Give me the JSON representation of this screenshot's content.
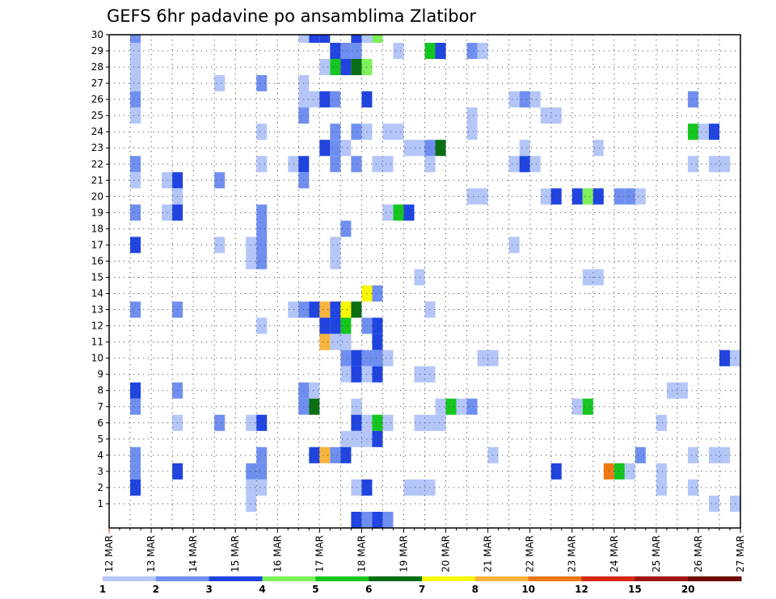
{
  "chart_data": {
    "type": "heatmap",
    "title": "GEFS 6hr padavine po ansamblima Zlatibor",
    "xlabel": "",
    "ylabel": "",
    "x_tick_labels": [
      "12 MAR",
      "13 MAR",
      "14 MAR",
      "15 MAR",
      "16 MAR",
      "17 MAR",
      "18 MAR",
      "19 MAR",
      "20 MAR",
      "21 MAR",
      "22 MAR",
      "23 MAR",
      "24 MAR",
      "25 MAR",
      "26 MAR",
      "27 MAR"
    ],
    "x_step_hours": 6,
    "x_steps": 60,
    "y_tick_labels": [
      "1",
      "2",
      "3",
      "4",
      "5",
      "6",
      "7",
      "8",
      "9",
      "10",
      "11",
      "12",
      "13",
      "14",
      "15",
      "16",
      "17",
      "18",
      "19",
      "20",
      "21",
      "22",
      "23",
      "24",
      "25",
      "26",
      "27",
      "28",
      "29",
      "30"
    ],
    "ylim": [
      0,
      30
    ],
    "grid": true,
    "colorbar": {
      "labels": [
        "1",
        "2",
        "3",
        "4",
        "5",
        "6",
        "7",
        "8",
        "10",
        "12",
        "15",
        "20"
      ],
      "colors": [
        "#b4c6f8",
        "#6f8ff0",
        "#1f44e0",
        "#7ef05a",
        "#14c61e",
        "#0a6e14",
        "#f8f800",
        "#f8b43c",
        "#f07814",
        "#d22814",
        "#a01414",
        "#6e0a0a"
      ]
    },
    "cell_series_format": [
      "member",
      "step",
      "color_index"
    ],
    "cells": [
      [
        30,
        2,
        1
      ],
      [
        30,
        18,
        0
      ],
      [
        30,
        19,
        2
      ],
      [
        30,
        20,
        2
      ],
      [
        30,
        23,
        2
      ],
      [
        30,
        24,
        0
      ],
      [
        30,
        25,
        3
      ],
      [
        29,
        2,
        0
      ],
      [
        29,
        21,
        2
      ],
      [
        29,
        22,
        1
      ],
      [
        29,
        23,
        1
      ],
      [
        29,
        27,
        0
      ],
      [
        29,
        30,
        4
      ],
      [
        29,
        31,
        2
      ],
      [
        29,
        34,
        1
      ],
      [
        29,
        35,
        0
      ],
      [
        28,
        2,
        0
      ],
      [
        28,
        20,
        0
      ],
      [
        28,
        21,
        4
      ],
      [
        28,
        22,
        2
      ],
      [
        28,
        23,
        5
      ],
      [
        28,
        24,
        3
      ],
      [
        27,
        2,
        0
      ],
      [
        27,
        10,
        0
      ],
      [
        27,
        14,
        1
      ],
      [
        27,
        18,
        0
      ],
      [
        26,
        2,
        1
      ],
      [
        26,
        18,
        0
      ],
      [
        26,
        19,
        0
      ],
      [
        26,
        20,
        2
      ],
      [
        26,
        21,
        1
      ],
      [
        26,
        24,
        2
      ],
      [
        26,
        38,
        0
      ],
      [
        26,
        39,
        1
      ],
      [
        26,
        40,
        0
      ],
      [
        26,
        55,
        1
      ],
      [
        25,
        2,
        0
      ],
      [
        25,
        18,
        1
      ],
      [
        25,
        34,
        0
      ],
      [
        25,
        41,
        0
      ],
      [
        25,
        42,
        0
      ],
      [
        24,
        14,
        0
      ],
      [
        24,
        21,
        1
      ],
      [
        24,
        23,
        1
      ],
      [
        24,
        24,
        0
      ],
      [
        24,
        26,
        0
      ],
      [
        24,
        27,
        0
      ],
      [
        24,
        34,
        0
      ],
      [
        24,
        55,
        4
      ],
      [
        24,
        56,
        0
      ],
      [
        24,
        57,
        2
      ],
      [
        23,
        20,
        2
      ],
      [
        23,
        21,
        1
      ],
      [
        23,
        22,
        0
      ],
      [
        23,
        28,
        0
      ],
      [
        23,
        29,
        0
      ],
      [
        23,
        30,
        1
      ],
      [
        23,
        31,
        5
      ],
      [
        23,
        39,
        0
      ],
      [
        23,
        46,
        0
      ],
      [
        22,
        2,
        1
      ],
      [
        22,
        14,
        0
      ],
      [
        22,
        17,
        0
      ],
      [
        22,
        18,
        2
      ],
      [
        22,
        21,
        1
      ],
      [
        22,
        23,
        1
      ],
      [
        22,
        25,
        0
      ],
      [
        22,
        26,
        0
      ],
      [
        22,
        30,
        0
      ],
      [
        22,
        38,
        0
      ],
      [
        22,
        39,
        2
      ],
      [
        22,
        40,
        0
      ],
      [
        22,
        55,
        0
      ],
      [
        22,
        57,
        0
      ],
      [
        22,
        58,
        0
      ],
      [
        21,
        2,
        0
      ],
      [
        21,
        5,
        0
      ],
      [
        21,
        6,
        2
      ],
      [
        21,
        10,
        1
      ],
      [
        21,
        18,
        1
      ],
      [
        20,
        6,
        0
      ],
      [
        20,
        34,
        0
      ],
      [
        20,
        35,
        0
      ],
      [
        20,
        41,
        0
      ],
      [
        20,
        42,
        2
      ],
      [
        20,
        44,
        2
      ],
      [
        20,
        45,
        3
      ],
      [
        20,
        46,
        2
      ],
      [
        20,
        48,
        1
      ],
      [
        20,
        49,
        1
      ],
      [
        20,
        50,
        0
      ],
      [
        19,
        2,
        1
      ],
      [
        19,
        5,
        0
      ],
      [
        19,
        6,
        2
      ],
      [
        19,
        14,
        1
      ],
      [
        19,
        26,
        0
      ],
      [
        19,
        27,
        4
      ],
      [
        19,
        28,
        2
      ],
      [
        18,
        14,
        1
      ],
      [
        18,
        22,
        1
      ],
      [
        17,
        2,
        2
      ],
      [
        17,
        10,
        0
      ],
      [
        17,
        13,
        0
      ],
      [
        17,
        14,
        1
      ],
      [
        17,
        21,
        0
      ],
      [
        17,
        38,
        0
      ],
      [
        16,
        13,
        0
      ],
      [
        16,
        14,
        1
      ],
      [
        16,
        21,
        0
      ],
      [
        15,
        29,
        0
      ],
      [
        15,
        45,
        0
      ],
      [
        15,
        46,
        0
      ],
      [
        14,
        24,
        6
      ],
      [
        14,
        25,
        1
      ],
      [
        13,
        2,
        1
      ],
      [
        13,
        6,
        1
      ],
      [
        13,
        17,
        0
      ],
      [
        13,
        18,
        1
      ],
      [
        13,
        19,
        2
      ],
      [
        13,
        20,
        7
      ],
      [
        13,
        21,
        2
      ],
      [
        13,
        22,
        6
      ],
      [
        13,
        23,
        5
      ],
      [
        13,
        30,
        0
      ],
      [
        12,
        14,
        0
      ],
      [
        12,
        20,
        2
      ],
      [
        12,
        21,
        2
      ],
      [
        12,
        22,
        4
      ],
      [
        12,
        24,
        1
      ],
      [
        12,
        25,
        2
      ],
      [
        11,
        20,
        7
      ],
      [
        11,
        21,
        0
      ],
      [
        11,
        22,
        0
      ],
      [
        11,
        25,
        2
      ],
      [
        10,
        22,
        1
      ],
      [
        10,
        23,
        2
      ],
      [
        10,
        24,
        1
      ],
      [
        10,
        25,
        1
      ],
      [
        10,
        26,
        0
      ],
      [
        10,
        35,
        0
      ],
      [
        10,
        36,
        0
      ],
      [
        10,
        58,
        2
      ],
      [
        10,
        59,
        0
      ],
      [
        9,
        22,
        0
      ],
      [
        9,
        23,
        2
      ],
      [
        9,
        24,
        0
      ],
      [
        9,
        25,
        2
      ],
      [
        9,
        29,
        0
      ],
      [
        9,
        30,
        0
      ],
      [
        8,
        2,
        2
      ],
      [
        8,
        6,
        1
      ],
      [
        8,
        18,
        1
      ],
      [
        8,
        19,
        0
      ],
      [
        8,
        53,
        0
      ],
      [
        8,
        54,
        0
      ],
      [
        7,
        2,
        1
      ],
      [
        7,
        18,
        1
      ],
      [
        7,
        19,
        5
      ],
      [
        7,
        23,
        0
      ],
      [
        7,
        31,
        0
      ],
      [
        7,
        32,
        4
      ],
      [
        7,
        33,
        0
      ],
      [
        7,
        34,
        1
      ],
      [
        7,
        44,
        0
      ],
      [
        7,
        45,
        4
      ],
      [
        6,
        6,
        0
      ],
      [
        6,
        10,
        1
      ],
      [
        6,
        13,
        0
      ],
      [
        6,
        14,
        2
      ],
      [
        6,
        23,
        2
      ],
      [
        6,
        24,
        0
      ],
      [
        6,
        25,
        4
      ],
      [
        6,
        26,
        0
      ],
      [
        6,
        29,
        0
      ],
      [
        6,
        30,
        0
      ],
      [
        6,
        31,
        0
      ],
      [
        6,
        52,
        0
      ],
      [
        5,
        22,
        0
      ],
      [
        5,
        23,
        0
      ],
      [
        5,
        24,
        0
      ],
      [
        5,
        25,
        2
      ],
      [
        4,
        2,
        1
      ],
      [
        4,
        14,
        1
      ],
      [
        4,
        19,
        2
      ],
      [
        4,
        20,
        7
      ],
      [
        4,
        21,
        1
      ],
      [
        4,
        22,
        2
      ],
      [
        4,
        36,
        0
      ],
      [
        4,
        50,
        1
      ],
      [
        4,
        55,
        0
      ],
      [
        4,
        57,
        0
      ],
      [
        4,
        58,
        0
      ],
      [
        3,
        2,
        1
      ],
      [
        3,
        6,
        2
      ],
      [
        3,
        13,
        1
      ],
      [
        3,
        14,
        1
      ],
      [
        3,
        42,
        2
      ],
      [
        3,
        47,
        8
      ],
      [
        3,
        48,
        4
      ],
      [
        3,
        49,
        0
      ],
      [
        3,
        52,
        0
      ],
      [
        2,
        2,
        2
      ],
      [
        2,
        13,
        0
      ],
      [
        2,
        14,
        0
      ],
      [
        2,
        23,
        0
      ],
      [
        2,
        24,
        2
      ],
      [
        2,
        28,
        0
      ],
      [
        2,
        29,
        0
      ],
      [
        2,
        30,
        0
      ],
      [
        2,
        52,
        0
      ],
      [
        2,
        55,
        0
      ],
      [
        1,
        13,
        0
      ],
      [
        1,
        57,
        0
      ],
      [
        1,
        59,
        0
      ],
      [
        0,
        23,
        2
      ],
      [
        0,
        24,
        1
      ],
      [
        0,
        25,
        2
      ],
      [
        0,
        26,
        1
      ]
    ]
  }
}
